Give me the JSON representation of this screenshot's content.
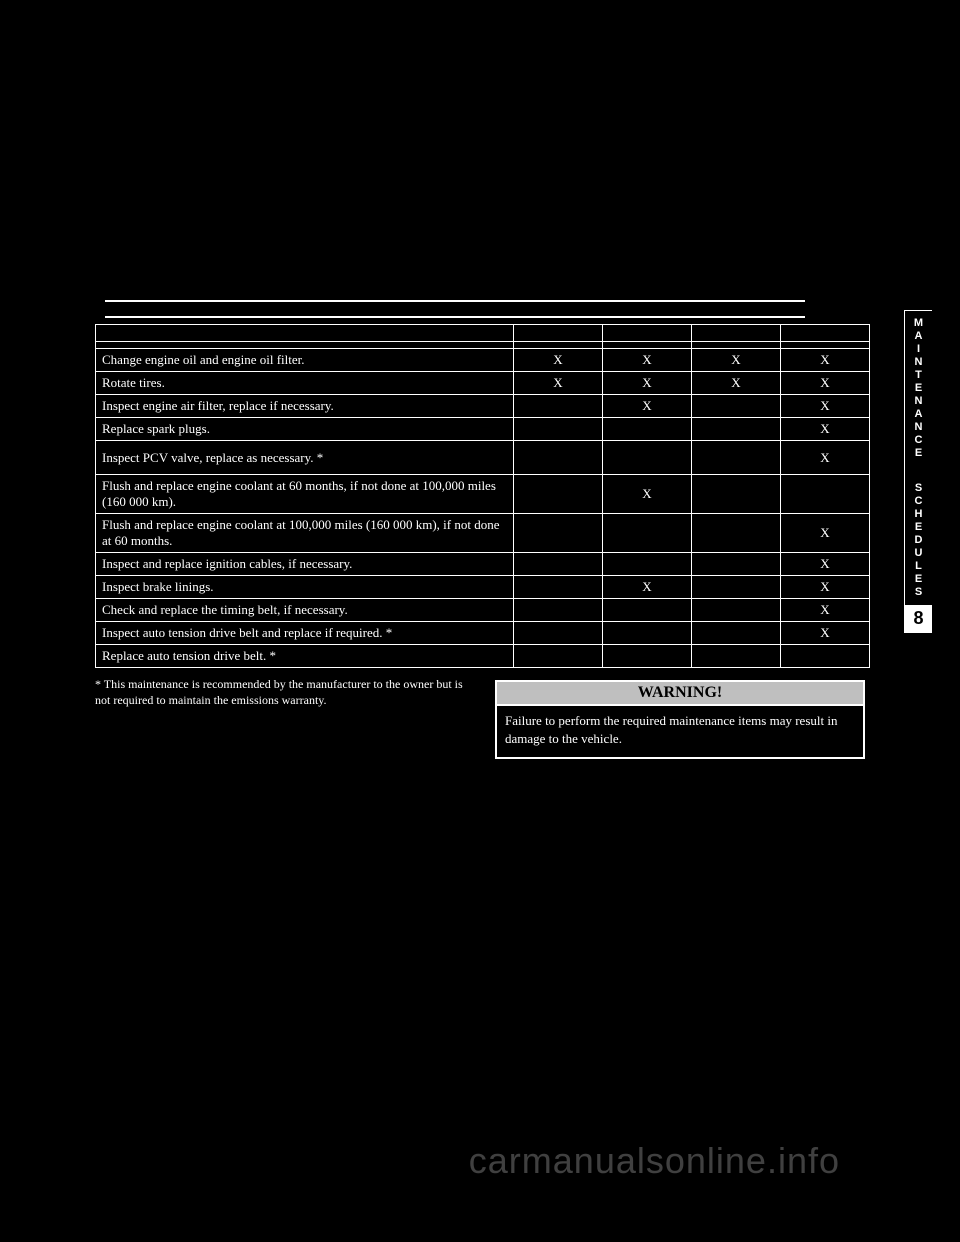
{
  "page_number": "",
  "side_tab": {
    "line1": [
      "M",
      "A",
      "I",
      "N",
      "T",
      "E",
      "N",
      "A",
      "N",
      "C",
      "E"
    ],
    "line2": [
      "S",
      "C",
      "H",
      "E",
      "D",
      "U",
      "L",
      "E",
      "S"
    ],
    "number": "8"
  },
  "table": {
    "header_cells": [
      "",
      "",
      "",
      ""
    ],
    "rows": [
      {
        "desc": "",
        "c1": "",
        "c2": "",
        "c3": "",
        "c4": ""
      },
      {
        "desc": "Change engine oil and engine oil filter.",
        "c1": "X",
        "c2": "X",
        "c3": "X",
        "c4": "X"
      },
      {
        "desc": "Rotate tires.",
        "c1": "X",
        "c2": "X",
        "c3": "X",
        "c4": "X"
      },
      {
        "desc": "Inspect engine air filter, replace if necessary.",
        "c1": "",
        "c2": "X",
        "c3": "",
        "c4": "X"
      },
      {
        "desc": "Replace spark plugs.",
        "c1": "",
        "c2": "",
        "c3": "",
        "c4": "X"
      },
      {
        "desc": "Inspect PCV valve, replace as necessary. *",
        "c1": "",
        "c2": "",
        "c3": "",
        "c4": "X"
      },
      {
        "desc": "Flush and replace engine coolant at 60 months, if not done at 100,000 miles (160 000 km).",
        "c1": "",
        "c2": "X",
        "c3": "",
        "c4": ""
      },
      {
        "desc": "Flush and replace engine coolant at 100,000 miles (160 000 km), if not done at 60 months.",
        "c1": "",
        "c2": "",
        "c3": "",
        "c4": "X"
      },
      {
        "desc": "Inspect and replace ignition cables, if necessary.",
        "c1": "",
        "c2": "",
        "c3": "",
        "c4": "X"
      },
      {
        "desc": "Inspect brake linings.",
        "c1": "",
        "c2": "X",
        "c3": "",
        "c4": "X"
      },
      {
        "desc": "Check and replace the timing belt, if necessary.",
        "c1": "",
        "c2": "",
        "c3": "",
        "c4": "X"
      },
      {
        "desc": "Inspect auto tension drive belt and replace if required. *",
        "c1": "",
        "c2": "",
        "c3": "",
        "c4": "X"
      },
      {
        "desc": "Replace auto tension drive belt. *",
        "c1": "",
        "c2": "",
        "c3": "",
        "c4": ""
      }
    ],
    "row_heights": {
      "double_rows": [
        5,
        6
      ]
    }
  },
  "footnote": "* This maintenance is recommended by the manufacturer to the owner but is not required to maintain the emissions warranty.",
  "warning": {
    "title": "WARNING!",
    "body": "Failure to perform the required maintenance items may result in damage to the vehicle."
  },
  "watermark": "carmanualsonline.info"
}
